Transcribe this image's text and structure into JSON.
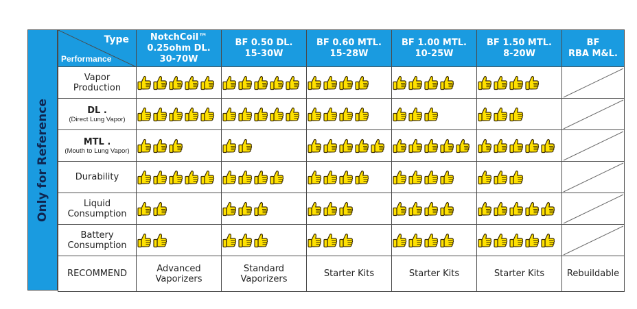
{
  "side_label": "Only for Reference",
  "header": {
    "type_label": "Type",
    "performance_label": "Performance",
    "columns": [
      {
        "lines": [
          "NotchCoil™",
          "0.25ohm DL.",
          "30-70W"
        ]
      },
      {
        "lines": [
          "BF 0.50 DL.",
          "15-30W"
        ]
      },
      {
        "lines": [
          "BF 0.60 MTL.",
          "15-28W"
        ]
      },
      {
        "lines": [
          "BF 1.00 MTL.",
          "10-25W"
        ]
      },
      {
        "lines": [
          "BF 1.50 MTL.",
          "8-20W"
        ]
      },
      {
        "lines": [
          "BF",
          "RBA M&L."
        ]
      }
    ]
  },
  "rows": [
    {
      "label": [
        "Vapor",
        "Production"
      ],
      "sub": "",
      "bold": false,
      "ratings": [
        5,
        5,
        4,
        4,
        4,
        null
      ]
    },
    {
      "label": [
        "DL ."
      ],
      "sub": "(Direct Lung Vapor)",
      "bold": true,
      "ratings": [
        5,
        5,
        4,
        3,
        3,
        null
      ]
    },
    {
      "label": [
        "MTL ."
      ],
      "sub": "(Mouth to Lung Vapor)",
      "bold": true,
      "ratings": [
        3,
        2,
        5,
        5,
        5,
        null
      ]
    },
    {
      "label": [
        "Durability"
      ],
      "sub": "",
      "bold": false,
      "ratings": [
        5,
        4,
        4,
        4,
        3,
        null
      ]
    },
    {
      "label": [
        "Liquid",
        "Consumption"
      ],
      "sub": "",
      "bold": false,
      "ratings": [
        2,
        3,
        3,
        4,
        5,
        null
      ]
    },
    {
      "label": [
        "Battery",
        "Consumption"
      ],
      "sub": "",
      "bold": false,
      "ratings": [
        2,
        3,
        3,
        4,
        5,
        null
      ]
    }
  ],
  "recommend": {
    "label": "RECOMMEND",
    "values": [
      [
        "Advanced",
        "Vaporizers"
      ],
      [
        "Standard",
        "Vaporizers"
      ],
      [
        "Starter Kits"
      ],
      [
        "Starter Kits"
      ],
      [
        "Starter Kits"
      ],
      [
        "Rebuildable"
      ]
    ]
  },
  "colors": {
    "header_blue": "#1a9be0",
    "side_text": "#0f2550",
    "thumb_yellow": "#ffe100",
    "thumb_outline": "#3a2a00",
    "grid_line": "#4a4a4a"
  },
  "icons": {
    "rating": "thumbs-up-icon"
  }
}
